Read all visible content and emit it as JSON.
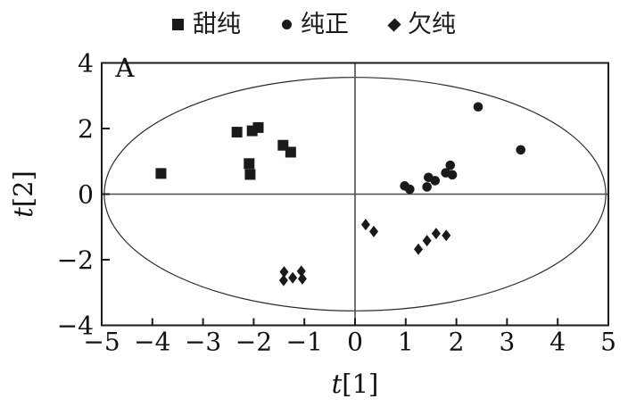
{
  "figure": {
    "annotation": "A",
    "legend": [
      {
        "label": "甜纯",
        "marker": "square"
      },
      {
        "label": "纯正",
        "marker": "circle"
      },
      {
        "label": "欠纯",
        "marker": "diamond"
      }
    ]
  },
  "colors": {
    "marker": "#1a1a1a",
    "box": "#1a1a1a",
    "crosshair": "#4d4d4d",
    "ellipse": "#2a2a2a"
  },
  "chart_data": {
    "type": "scatter",
    "title": "",
    "xlabel": "t[1]",
    "ylabel": "t[2]",
    "xlim": [
      -5,
      5
    ],
    "ylim": [
      -4,
      4
    ],
    "x_ticks": [
      -5,
      -4,
      -3,
      -2,
      -1,
      0,
      1,
      2,
      3,
      4,
      5
    ],
    "y_ticks": [
      -4,
      -2,
      0,
      2,
      4
    ],
    "grid": false,
    "legend_position": "top-center",
    "annotation": "A",
    "crosshair_axes": {
      "x": 0,
      "y": 0
    },
    "ellipse": {
      "cx": 0,
      "cy": 0,
      "rx": 4.95,
      "ry": 3.56,
      "note": "Hotelling-type confidence ellipse"
    },
    "series": [
      {
        "name": "甜纯",
        "marker": "square",
        "points": [
          [
            -3.83,
            0.63
          ],
          [
            -2.33,
            1.89
          ],
          [
            -2.03,
            1.93
          ],
          [
            -1.91,
            2.03
          ],
          [
            -2.09,
            0.93
          ],
          [
            -2.07,
            0.6
          ],
          [
            -1.42,
            1.49
          ],
          [
            -1.27,
            1.28
          ]
        ]
      },
      {
        "name": "纯正",
        "marker": "circle",
        "points": [
          [
            0.98,
            0.25
          ],
          [
            1.08,
            0.15
          ],
          [
            1.42,
            0.22
          ],
          [
            1.45,
            0.51
          ],
          [
            1.58,
            0.41
          ],
          [
            1.79,
            0.65
          ],
          [
            1.92,
            0.59
          ],
          [
            1.88,
            0.88
          ],
          [
            2.43,
            2.66
          ],
          [
            3.27,
            1.35
          ]
        ]
      },
      {
        "name": "欠纯",
        "marker": "diamond",
        "points": [
          [
            0.21,
            -0.93
          ],
          [
            0.37,
            -1.14
          ],
          [
            1.25,
            -1.68
          ],
          [
            1.42,
            -1.42
          ],
          [
            1.6,
            -1.2
          ],
          [
            1.8,
            -1.26
          ],
          [
            -1.4,
            -2.37
          ],
          [
            -1.41,
            -2.63
          ],
          [
            -1.23,
            -2.55
          ],
          [
            -1.06,
            -2.35
          ],
          [
            -1.04,
            -2.58
          ]
        ]
      }
    ]
  }
}
